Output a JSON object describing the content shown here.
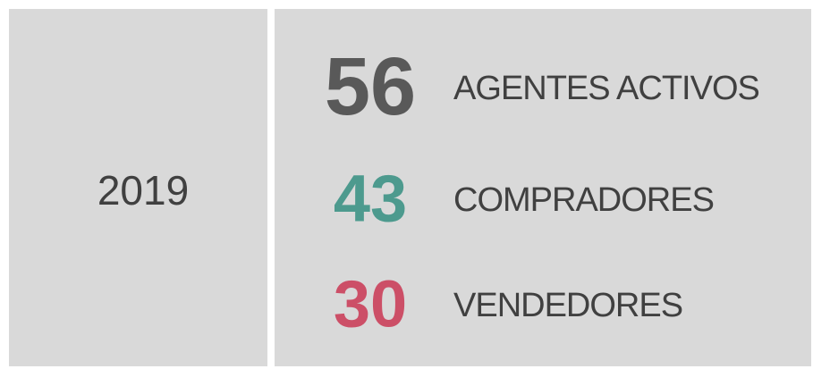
{
  "year": "2019",
  "stats": [
    {
      "value": 56,
      "label": "AGENTES ACTIVOS",
      "color": "#595959"
    },
    {
      "value": 43,
      "label": "COMPRADORES",
      "color": "#4d9a8e"
    },
    {
      "value": 30,
      "label": "VENDEDORES",
      "color": "#cc4f67"
    }
  ]
}
